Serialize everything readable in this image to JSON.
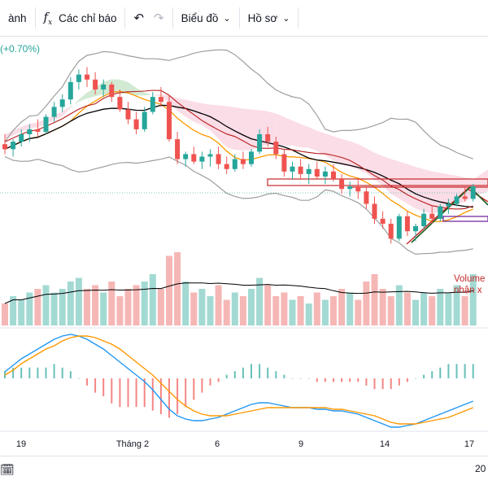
{
  "toolbar": {
    "cut_label": "ành",
    "indicators_label": "Các chỉ báo",
    "chart_type_label": "Biểu đồ",
    "profile_label": "Hồ sơ"
  },
  "price_change": "(+0.70%)",
  "volume_note": [
    "Volume",
    "nhận x"
  ],
  "bottom": {
    "year_partial": "20"
  },
  "colors": {
    "up": "#26a69a",
    "down": "#ef5350",
    "cloud_up": "#a5d6a7",
    "cloud_down": "#f8bbd0",
    "macd": "#2196f3",
    "signal": "#ff9800"
  },
  "chart_data": {
    "type": "candlestick",
    "x_tick_labels": [
      "19",
      "Tháng 2",
      "6",
      "9",
      "14",
      "17"
    ],
    "candles_ohlc": [
      [
        120,
        124,
        116,
        118
      ],
      [
        118,
        122,
        115,
        121
      ],
      [
        121,
        126,
        119,
        124
      ],
      [
        124,
        128,
        121,
        126
      ],
      [
        126,
        130,
        123,
        125
      ],
      [
        125,
        132,
        124,
        131
      ],
      [
        131,
        137,
        129,
        135
      ],
      [
        135,
        140,
        133,
        138
      ],
      [
        138,
        147,
        136,
        145
      ],
      [
        145,
        150,
        142,
        148
      ],
      [
        148,
        151,
        143,
        146
      ],
      [
        146,
        149,
        140,
        142
      ],
      [
        142,
        146,
        139,
        144
      ],
      [
        144,
        145,
        137,
        139
      ],
      [
        139,
        142,
        133,
        134
      ],
      [
        134,
        137,
        128,
        130
      ],
      [
        130,
        133,
        124,
        126
      ],
      [
        126,
        135,
        125,
        133
      ],
      [
        133,
        141,
        132,
        139
      ],
      [
        139,
        143,
        135,
        137
      ],
      [
        137,
        140,
        121,
        122
      ],
      [
        122,
        125,
        112,
        114
      ],
      [
        114,
        117,
        111,
        116
      ],
      [
        116,
        119,
        112,
        113
      ],
      [
        113,
        117,
        110,
        115
      ],
      [
        115,
        118,
        111,
        116
      ],
      [
        116,
        119,
        110,
        112
      ],
      [
        112,
        115,
        108,
        110
      ],
      [
        110,
        116,
        109,
        114
      ],
      [
        114,
        117,
        110,
        112
      ],
      [
        112,
        118,
        111,
        117
      ],
      [
        117,
        126,
        116,
        124
      ],
      [
        124,
        127,
        119,
        121
      ],
      [
        121,
        123,
        114,
        116
      ],
      [
        116,
        118,
        107,
        109
      ],
      [
        109,
        113,
        106,
        111
      ],
      [
        111,
        114,
        106,
        108
      ],
      [
        108,
        112,
        104,
        110
      ],
      [
        110,
        113,
        106,
        107
      ],
      [
        107,
        111,
        104,
        109
      ],
      [
        109,
        112,
        105,
        106
      ],
      [
        106,
        108,
        100,
        102
      ],
      [
        102,
        105,
        99,
        103
      ],
      [
        103,
        106,
        98,
        101
      ],
      [
        101,
        103,
        94,
        96
      ],
      [
        96,
        99,
        88,
        90
      ],
      [
        90,
        93,
        86,
        88
      ],
      [
        88,
        90,
        80,
        82
      ],
      [
        82,
        92,
        81,
        91
      ],
      [
        91,
        93,
        83,
        85
      ],
      [
        85,
        88,
        81,
        87
      ],
      [
        87,
        94,
        86,
        92
      ],
      [
        92,
        95,
        88,
        90
      ],
      [
        90,
        96,
        89,
        95
      ],
      [
        95,
        98,
        92,
        96
      ],
      [
        96,
        100,
        95,
        99
      ],
      [
        99,
        103,
        97,
        98
      ],
      [
        98,
        104,
        97,
        103
      ]
    ],
    "volume_ratio": [
      0.3,
      0.4,
      0.35,
      0.45,
      0.5,
      0.55,
      0.45,
      0.5,
      0.6,
      0.65,
      0.5,
      0.55,
      0.45,
      0.6,
      0.4,
      0.5,
      0.55,
      0.6,
      0.7,
      0.5,
      0.95,
      1.0,
      0.6,
      0.45,
      0.5,
      0.4,
      0.55,
      0.35,
      0.45,
      0.4,
      0.5,
      0.65,
      0.55,
      0.4,
      0.45,
      0.35,
      0.4,
      0.3,
      0.45,
      0.35,
      0.4,
      0.5,
      0.45,
      0.35,
      0.6,
      0.7,
      0.5,
      0.4,
      0.55,
      0.45,
      0.35,
      0.45,
      0.4,
      0.5,
      0.45,
      0.55,
      0.4,
      0.7
    ],
    "macd_line": [
      0.4,
      0.8,
      1.2,
      1.5,
      1.8,
      2.1,
      2.4,
      2.6,
      2.7,
      2.6,
      2.4,
      2.1,
      1.8,
      1.4,
      1.0,
      0.6,
      0.2,
      -0.2,
      -0.7,
      -1.3,
      -1.9,
      -2.3,
      -2.5,
      -2.6,
      -2.6,
      -2.5,
      -2.4,
      -2.2,
      -2.0,
      -1.8,
      -1.6,
      -1.5,
      -1.5,
      -1.6,
      -1.7,
      -1.8,
      -1.8,
      -1.8,
      -1.9,
      -1.9,
      -2.0,
      -2.0,
      -2.1,
      -2.2,
      -2.4,
      -2.6,
      -2.8,
      -3.0,
      -3.0,
      -2.9,
      -2.8,
      -2.6,
      -2.4,
      -2.2,
      -2.0,
      -1.8,
      -1.6,
      -1.4
    ],
    "signal_line": [
      0.2,
      0.5,
      0.9,
      1.2,
      1.5,
      1.8,
      2.0,
      2.3,
      2.5,
      2.6,
      2.6,
      2.5,
      2.3,
      2.1,
      1.8,
      1.4,
      1.0,
      0.6,
      0.2,
      -0.3,
      -0.8,
      -1.3,
      -1.7,
      -2.0,
      -2.2,
      -2.3,
      -2.3,
      -2.3,
      -2.2,
      -2.1,
      -2.0,
      -1.9,
      -1.8,
      -1.8,
      -1.8,
      -1.8,
      -1.8,
      -1.8,
      -1.8,
      -1.8,
      -1.9,
      -1.9,
      -2.0,
      -2.1,
      -2.2,
      -2.3,
      -2.5,
      -2.7,
      -2.8,
      -2.8,
      -2.8,
      -2.7,
      -2.6,
      -2.5,
      -2.4,
      -2.2,
      -2.0,
      -1.8
    ]
  }
}
